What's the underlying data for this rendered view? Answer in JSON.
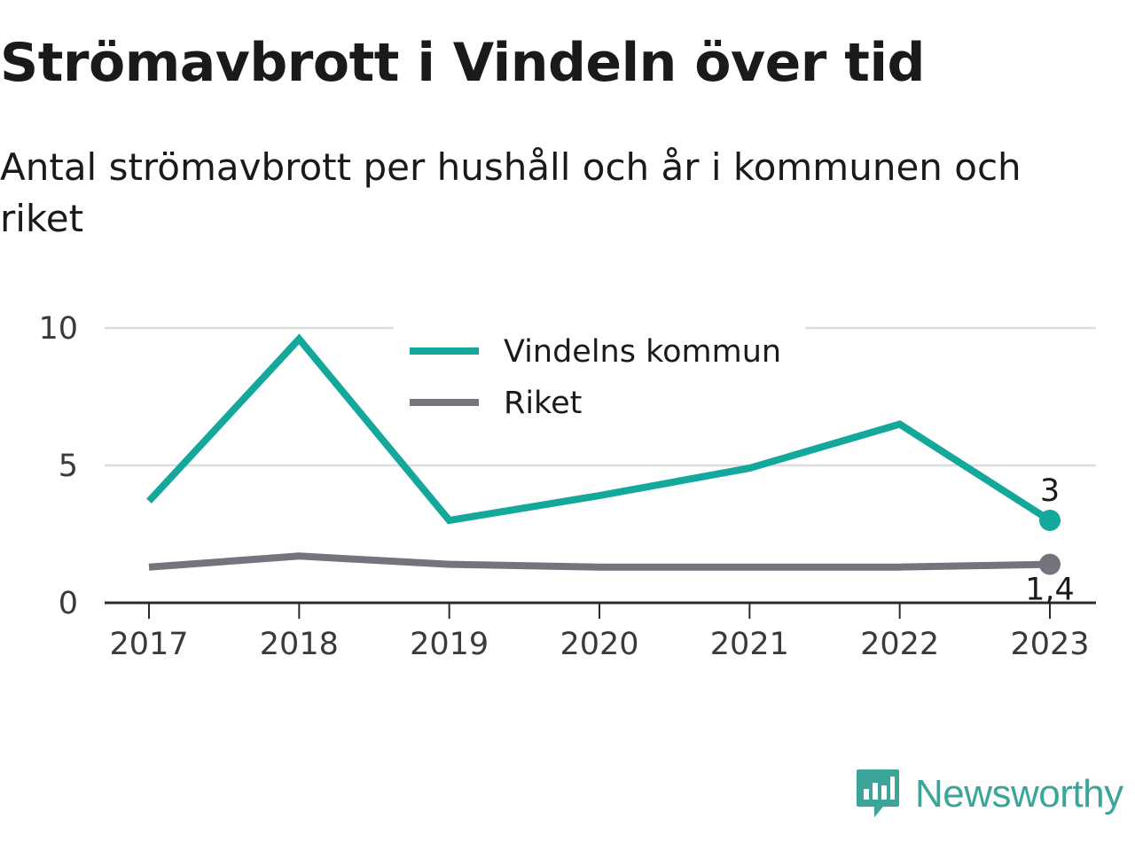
{
  "title": "Strömavbrott i Vindeln över tid",
  "subtitle": "Antal strömavbrott per hushåll och år i kommunen och riket",
  "brand": {
    "name": "Newsworthy",
    "icon": "newsworthy-logo-icon",
    "color": "#3ba59a"
  },
  "chart_data": {
    "type": "line",
    "title": "Strömavbrott i Vindeln över tid",
    "subtitle": "Antal strömavbrott per hushåll och år i kommunen och riket",
    "xlabel": "",
    "ylabel": "",
    "categories": [
      "2017",
      "2018",
      "2019",
      "2020",
      "2021",
      "2022",
      "2023"
    ],
    "ylim": [
      0,
      10
    ],
    "yticks": [
      "0",
      "5",
      "10"
    ],
    "grid": true,
    "legend_position": "top-center",
    "series": [
      {
        "name": "Vindelns kommun",
        "color": "#14a89c",
        "values": [
          3.7,
          9.6,
          3.0,
          3.9,
          4.9,
          6.5,
          3.0
        ],
        "end_label": "3"
      },
      {
        "name": "Riket",
        "color": "#75747c",
        "values": [
          1.3,
          1.7,
          1.4,
          1.3,
          1.3,
          1.3,
          1.4
        ],
        "end_label": "1,4"
      }
    ]
  }
}
